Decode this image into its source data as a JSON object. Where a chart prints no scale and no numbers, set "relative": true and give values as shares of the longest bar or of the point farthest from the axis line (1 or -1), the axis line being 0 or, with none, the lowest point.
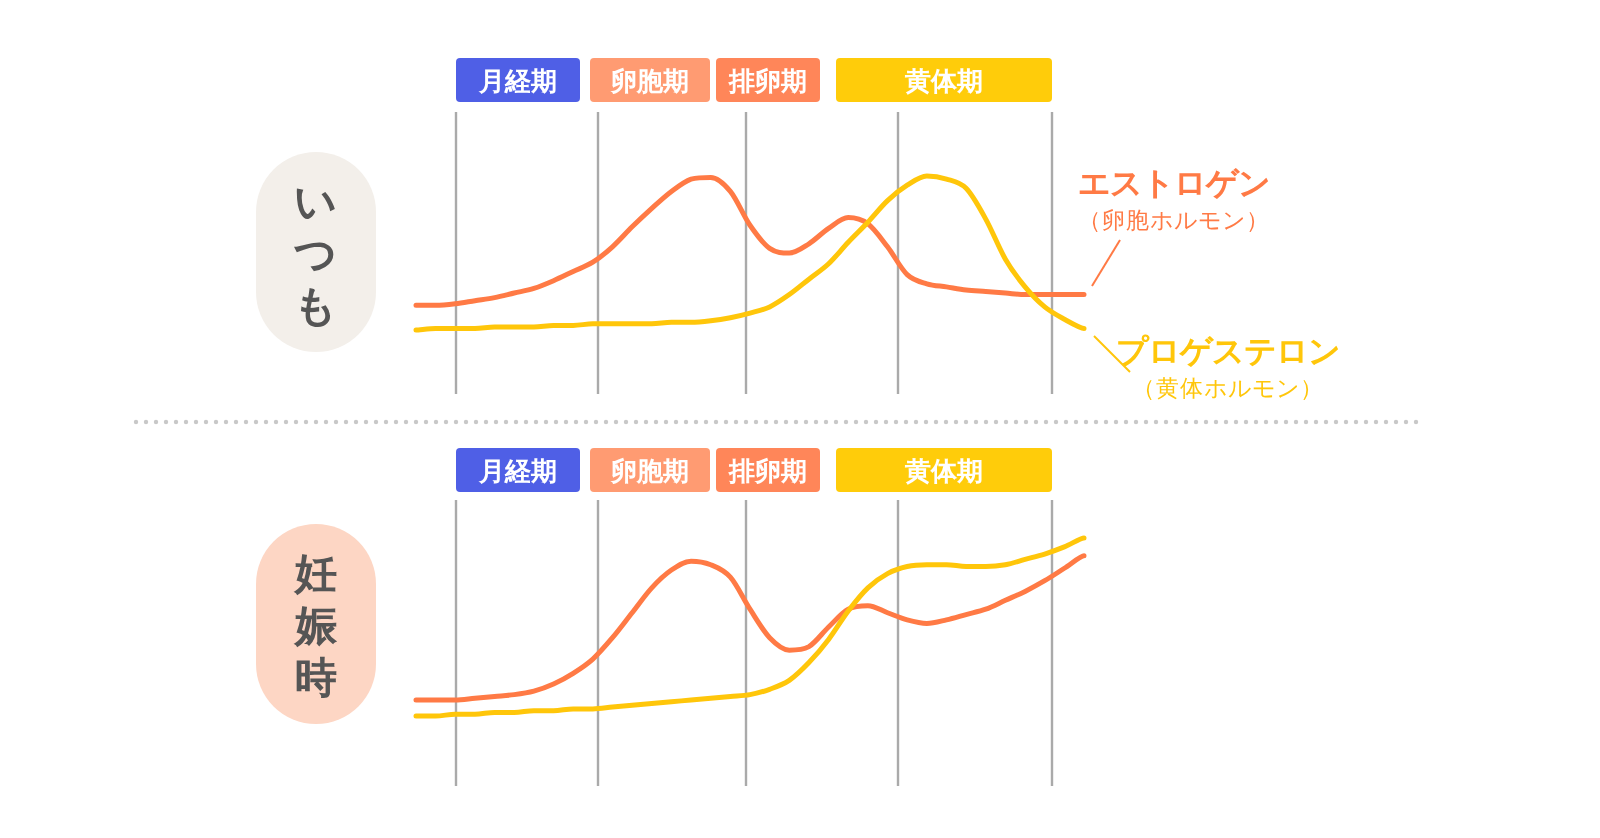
{
  "chart_data": [
    {
      "type": "line",
      "title": "いつも",
      "relative": true,
      "legend": false,
      "grid": false,
      "line_style": "solid",
      "marker": "none",
      "categories": [
        null,
        null,
        null,
        null,
        null,
        null,
        null,
        null,
        null,
        null,
        null,
        null,
        null,
        null,
        null,
        null,
        null,
        null,
        null,
        null,
        null,
        null,
        null,
        null,
        null,
        null,
        null,
        null,
        null,
        null,
        null,
        null,
        null,
        null,
        null
      ],
      "series": [
        {
          "name": "エストロゲン",
          "color": "#ff7a45",
          "values": [
            0.16,
            0.16,
            0.17,
            0.19,
            0.21,
            0.24,
            0.27,
            0.32,
            0.38,
            0.44,
            0.54,
            0.67,
            0.79,
            0.9,
            0.98,
            0.99,
            0.9,
            0.68,
            0.53,
            0.5,
            0.56,
            0.66,
            0.73,
            0.69,
            0.54,
            0.36,
            0.3,
            0.28,
            0.26,
            0.25,
            0.24,
            0.23,
            0.23,
            0.23,
            0.23
          ]
        },
        {
          "name": "プロゲステロン",
          "color": "#ffc60a",
          "values": [
            0,
            0.01,
            0.01,
            0.01,
            0.02,
            0.02,
            0.02,
            0.03,
            0.03,
            0.04,
            0.04,
            0.04,
            0.04,
            0.05,
            0.05,
            0.06,
            0.08,
            0.11,
            0.15,
            0.23,
            0.33,
            0.43,
            0.57,
            0.7,
            0.84,
            0.94,
            1.0,
            0.98,
            0.92,
            0.72,
            0.46,
            0.28,
            0.15,
            0.07,
            0.01
          ]
        }
      ],
      "annotations": [
        "月経期",
        "卵胞期",
        "排卵期",
        "黄体期",
        "（卵胞ホルモン）",
        "（黄体ホルモン）"
      ]
    },
    {
      "type": "line",
      "title": "妊娠時",
      "relative": true,
      "legend": false,
      "grid": false,
      "line_style": "solid",
      "marker": "none",
      "categories": [
        null,
        null,
        null,
        null,
        null,
        null,
        null,
        null,
        null,
        null,
        null,
        null,
        null,
        null,
        null,
        null,
        null,
        null,
        null,
        null,
        null,
        null,
        null,
        null,
        null,
        null,
        null,
        null,
        null,
        null,
        null,
        null,
        null,
        null,
        null
      ],
      "series": [
        {
          "color": "#ff7a45",
          "values": [
            0.09,
            0.09,
            0.09,
            0.1,
            0.11,
            0.12,
            0.14,
            0.18,
            0.24,
            0.32,
            0.44,
            0.58,
            0.72,
            0.82,
            0.87,
            0.85,
            0.78,
            0.6,
            0.44,
            0.37,
            0.39,
            0.5,
            0.6,
            0.62,
            0.58,
            0.54,
            0.52,
            0.54,
            0.57,
            0.6,
            0.65,
            0.7,
            0.76,
            0.83,
            0.9
          ]
        },
        {
          "color": "#ffc60a",
          "values": [
            0,
            0,
            0.01,
            0.01,
            0.02,
            0.02,
            0.03,
            0.03,
            0.04,
            0.04,
            0.05,
            0.06,
            0.07,
            0.08,
            0.09,
            0.1,
            0.11,
            0.12,
            0.15,
            0.2,
            0.3,
            0.43,
            0.59,
            0.72,
            0.8,
            0.84,
            0.85,
            0.85,
            0.84,
            0.84,
            0.85,
            0.88,
            0.91,
            0.95,
            1.0
          ]
        }
      ],
      "annotations": [
        "月経期",
        "卵胞期",
        "排卵期",
        "黄体期"
      ]
    }
  ]
}
